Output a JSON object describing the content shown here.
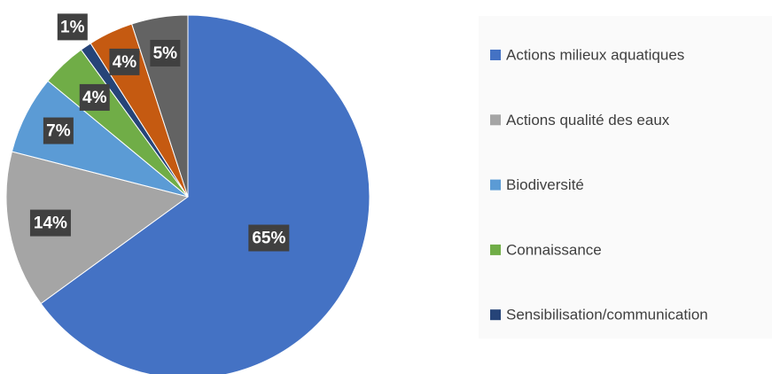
{
  "chart_data": {
    "type": "pie",
    "categories": [
      "Actions milieux aquatiques",
      "Actions qualité des eaux",
      "Biodiversité",
      "Connaissance",
      "Sensibilisation/communication",
      null,
      null
    ],
    "values": [
      65,
      14,
      7,
      4,
      1,
      4,
      5
    ],
    "value_labels": [
      "65%",
      "14%",
      "7%",
      "4%",
      "1%",
      "4%",
      "5%"
    ],
    "colors": [
      "#4472c4",
      "#a5a5a5",
      "#5b9bd5",
      "#70ad47",
      "#264478",
      "#c55a11",
      "#636363"
    ]
  }
}
